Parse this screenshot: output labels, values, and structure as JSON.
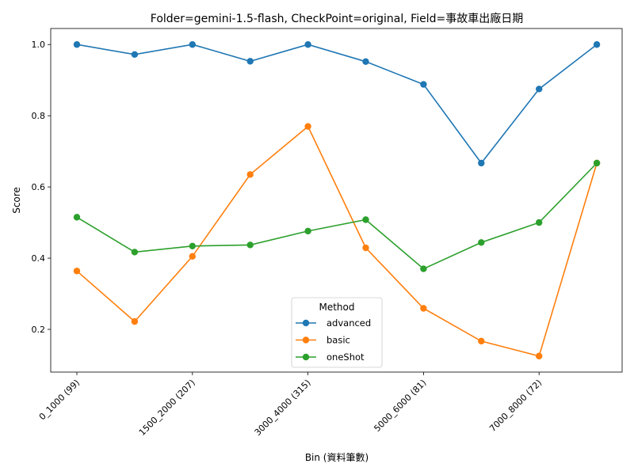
{
  "chart_data": {
    "type": "line",
    "title": "Folder=gemini-1.5-flash, CheckPoint=original, Field=事故車出廠日期",
    "xlabel": "Bin (資料筆數)",
    "ylabel": "Score",
    "ylim": [
      0.08,
      1.045
    ],
    "yticks": [
      "0.2",
      "0.4",
      "0.6",
      "0.8",
      "1.0"
    ],
    "categories_count": 10,
    "xtick_labels": [
      {
        "index": 0,
        "label": "0_1000 (99)"
      },
      {
        "index": 2,
        "label": "1500_2000 (207)"
      },
      {
        "index": 4,
        "label": "3000_4000 (315)"
      },
      {
        "index": 6,
        "label": "5000_6000 (81)"
      },
      {
        "index": 8,
        "label": "7000_8000 (72)"
      }
    ],
    "legend": {
      "title": "Method",
      "placement": "lower-center"
    },
    "series": [
      {
        "name": "advanced",
        "color": "#1f77b4",
        "values": [
          1.0,
          0.972,
          1.0,
          0.953,
          1.0,
          0.952,
          0.888,
          0.667,
          0.875,
          1.0
        ]
      },
      {
        "name": "basic",
        "color": "#ff7f0e",
        "values": [
          0.364,
          0.222,
          0.405,
          0.635,
          0.77,
          0.429,
          0.259,
          0.167,
          0.125,
          0.667
        ]
      },
      {
        "name": "oneShot",
        "color": "#2ca02c",
        "values": [
          0.515,
          0.417,
          0.434,
          0.437,
          0.476,
          0.508,
          0.37,
          0.444,
          0.5,
          0.667
        ]
      }
    ]
  }
}
